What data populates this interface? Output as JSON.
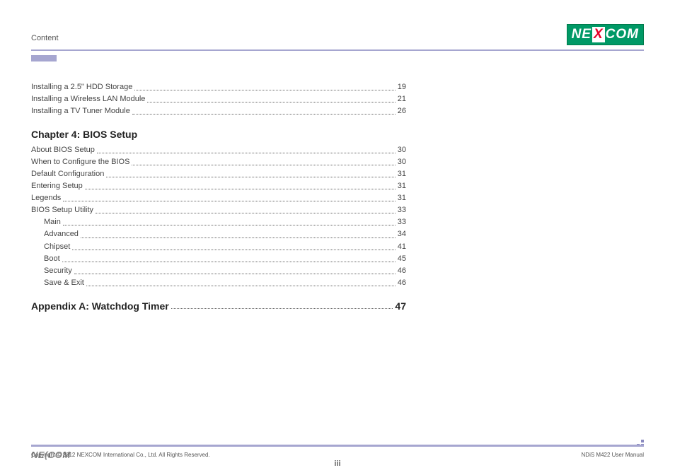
{
  "header": {
    "title": "Content",
    "logo": {
      "part1": "NE",
      "x": "X",
      "part2": "COM"
    }
  },
  "colors": {
    "accent": "#a6a6d0",
    "logo_bg": "#009966",
    "logo_x": "#e60028",
    "text": "#333333"
  },
  "toc_pre": [
    {
      "label": "Installing a 2.5\" HDD Storage",
      "page": "19",
      "indent": false
    },
    {
      "label": "Installing a Wireless LAN Module",
      "page": "21",
      "indent": false
    },
    {
      "label": "Installing a TV Tuner Module",
      "page": "26",
      "indent": false
    }
  ],
  "chapter": {
    "title": "Chapter 4: BIOS Setup"
  },
  "toc_ch4": [
    {
      "label": "About BIOS Setup",
      "page": "30",
      "indent": false
    },
    {
      "label": "When to Configure the BIOS",
      "page": "30",
      "indent": false
    },
    {
      "label": "Default Configuration",
      "page": "31",
      "indent": false
    },
    {
      "label": "Entering Setup",
      "page": "31",
      "indent": false
    },
    {
      "label": "Legends",
      "page": "31",
      "indent": false
    },
    {
      "label": "BIOS Setup Utility",
      "page": "33",
      "indent": false
    },
    {
      "label": "Main",
      "page": "33",
      "indent": true
    },
    {
      "label": "Advanced",
      "page": "34",
      "indent": true
    },
    {
      "label": "Chipset",
      "page": "41",
      "indent": true
    },
    {
      "label": "Boot",
      "page": "45",
      "indent": true
    },
    {
      "label": "Security",
      "page": "46",
      "indent": true
    },
    {
      "label": "Save & Exit",
      "page": "46",
      "indent": true
    }
  ],
  "appendix": {
    "label": "Appendix A: Watchdog Timer",
    "page": "47"
  },
  "footer": {
    "logo": "NE(COM",
    "copyright": "Copyright © 2012 NEXCOM International Co., Ltd. All Rights Reserved.",
    "manual": "NDiS M422 User Manual",
    "page_number": "iii"
  }
}
